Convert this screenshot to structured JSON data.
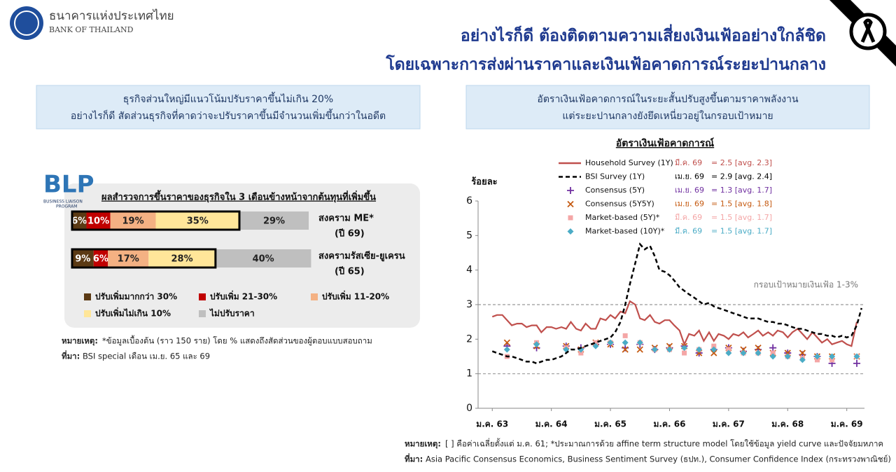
{
  "header": {
    "logo_th": "ธนาคารแห่งประเทศไทย",
    "logo_en": "BANK OF THAILAND",
    "title_lines": [
      "อย่างไรก็ดี ต้องติดตามความเสี่ยงเงินเฟ้ออย่างใกล้ชิด",
      "โดยเฉพาะการส่งผ่านราคาและเงินเฟ้อคาดการณ์ระยะปานกลาง"
    ]
  },
  "left_panel": {
    "heading_lines": [
      "ธุรกิจส่วนใหญ่มีแนวโน้มปรับราคาขึ้นไม่เกิน 20%",
      "อย่างไรก็ดี สัดส่วนธุรกิจที่คาดว่าจะปรับราคาขึ้นมีจำนวนเพิ่มขึ้นกว่าในอดีต"
    ],
    "logo": "BLP",
    "logo_sub": [
      "BUSINESS LIAISON",
      "PROGRAM"
    ],
    "note_label": "หมายเหตุ:",
    "note": "*ข้อมูลเบื้องต้น (ราว 150 ราย) โดย % แสดงถึงสัดส่วนของผู้ตอบแบบสอบถาม",
    "source_label": "ที่มา:",
    "source": "BSI special เดือน เม.ย. 65 และ 69"
  },
  "right_panel": {
    "heading_lines": [
      "อัตราเงินเฟ้อคาดการณ์ในระยะสั้นปรับสูงขึ้นตามราคาพลังงาน",
      "แต่ระยะปานกลางยังยึดเหนี่ยวอยู่ในกรอบเป้าหมาย"
    ],
    "note_label": "หมายเหตุ:",
    "note": "[ ] คือค่าเฉลี่ยตั้งแต่ ม.ค. 61; *ประมาณการด้วย affine term structure model โดยใช้ข้อมูล yield curve และปัจจัยมหภาค",
    "source_label": "ที่มา:",
    "source": "Asia Pacific Consensus Economics, Business Sentiment Survey (ธปท.), Consumer Confidence Index (กระทรวงพาณิชย์)"
  },
  "chart_data": [
    {
      "type": "bar",
      "orientation": "horizontal",
      "stacked": true,
      "title": "ผลสำรวจการขึ้นราคาของธุรกิจใน 3 เดือนข้างหน้าจากต้นทุนที่เพิ่มขึ้น",
      "categories": [
        "สงคราม ME*",
        "สงครามรัสเซีย-ยูเครน"
      ],
      "category_notes": [
        "(ปี 69)",
        "(ปี 65)"
      ],
      "series": [
        {
          "name": "ปรับเพิ่มมากกว่า 30%",
          "color": "#5b3a14",
          "values": [
            6,
            9
          ],
          "value_labels": [
            "6%",
            "9%"
          ],
          "framed": true
        },
        {
          "name": "ปรับเพิ่ม 21-30%",
          "color": "#c00000",
          "values": [
            10,
            6
          ],
          "value_labels": [
            "10%",
            "6%"
          ],
          "framed": true
        },
        {
          "name": "ปรับเพิ่ม 11-20%",
          "color": "#f4b183",
          "values": [
            19,
            17
          ],
          "value_labels": [
            "19%",
            "17%"
          ],
          "framed": true
        },
        {
          "name": "ปรับเพิ่มไม่เกิน 10%",
          "color": "#ffe699",
          "values": [
            35,
            28
          ],
          "value_labels": [
            "35%",
            "28%"
          ],
          "framed": true
        },
        {
          "name": "ไม่ปรับราคา",
          "color": "#bfbfbf",
          "values": [
            29,
            40
          ],
          "value_labels": [
            "29%",
            "40%"
          ],
          "framed": false
        }
      ]
    },
    {
      "type": "line",
      "title": "อัตราเงินเฟ้อคาดการณ์",
      "y_label": "ร้อยละ",
      "xlim": [
        62.76,
        69.3
      ],
      "xticks": [
        {
          "value": 63,
          "label": "ม.ค. 63"
        },
        {
          "value": 64,
          "label": "ม.ค. 64"
        },
        {
          "value": 65,
          "label": "ม.ค. 65"
        },
        {
          "value": 66,
          "label": "ม.ค. 66"
        },
        {
          "value": 67,
          "label": "ม.ค. 67"
        },
        {
          "value": 68,
          "label": "ม.ค. 68"
        },
        {
          "value": 69,
          "label": "ม.ค. 69"
        }
      ],
      "ylim": [
        0,
        6
      ],
      "yticks": [
        0,
        1,
        2,
        3,
        4,
        5,
        6
      ],
      "target_band": [
        1,
        3
      ],
      "target_label": "กรอบเป้าหมายเงินเฟ้อ 1-3%",
      "series": [
        {
          "name": "Household Survey (1Y)",
          "color": "#c0504d",
          "style": "solid",
          "latest_label": "มี.ค. 69",
          "legend_note": "= 2.5 [avg. 2.3]",
          "x": [
            63,
            63.08,
            63.17,
            63.25,
            63.33,
            63.42,
            63.5,
            63.58,
            63.67,
            63.75,
            63.83,
            63.92,
            64,
            64.08,
            64.17,
            64.25,
            64.33,
            64.42,
            64.5,
            64.58,
            64.67,
            64.75,
            64.83,
            64.92,
            65,
            65.08,
            65.17,
            65.25,
            65.33,
            65.42,
            65.5,
            65.58,
            65.67,
            65.75,
            65.83,
            65.92,
            66,
            66.08,
            66.17,
            66.25,
            66.33,
            66.42,
            66.5,
            66.58,
            66.67,
            66.75,
            66.83,
            66.92,
            67,
            67.08,
            67.17,
            67.25,
            67.33,
            67.42,
            67.5,
            67.58,
            67.67,
            67.75,
            67.83,
            67.92,
            68,
            68.08,
            68.17,
            68.25,
            68.33,
            68.42,
            68.5,
            68.58,
            68.67,
            68.75,
            68.83,
            68.92,
            69,
            69.08,
            69.17
          ],
          "values": [
            2.65,
            2.7,
            2.7,
            2.55,
            2.4,
            2.45,
            2.45,
            2.35,
            2.4,
            2.4,
            2.2,
            2.35,
            2.35,
            2.3,
            2.35,
            2.3,
            2.5,
            2.3,
            2.25,
            2.45,
            2.3,
            2.3,
            2.6,
            2.55,
            2.7,
            2.6,
            2.8,
            2.75,
            3.1,
            3.0,
            2.6,
            2.55,
            2.7,
            2.5,
            2.45,
            2.55,
            2.55,
            2.4,
            2.25,
            1.85,
            2.15,
            2.1,
            2.25,
            1.95,
            2.2,
            1.95,
            2.15,
            2.1,
            2.0,
            2.15,
            2.1,
            2.2,
            2.05,
            2.15,
            2.25,
            2.1,
            2.2,
            2.1,
            2.25,
            2.2,
            2.05,
            2.2,
            2.3,
            2.15,
            2.0,
            2.2,
            2.05,
            1.9,
            2.0,
            1.85,
            1.9,
            1.95,
            1.85,
            1.8,
            2.5
          ]
        },
        {
          "name": "BSI Survey (1Y)",
          "color": "#000000",
          "style": "dashed",
          "latest_label": "เม.ย. 69",
          "legend_note": "= 2.9 [avg. 2.4]",
          "x": [
            63,
            63.08,
            63.17,
            63.25,
            63.33,
            63.42,
            63.5,
            63.58,
            63.67,
            63.75,
            63.83,
            63.92,
            64,
            64.08,
            64.17,
            64.25,
            64.33,
            64.42,
            64.5,
            64.58,
            64.67,
            64.75,
            64.83,
            64.92,
            65,
            65.08,
            65.17,
            65.25,
            65.33,
            65.42,
            65.5,
            65.58,
            65.67,
            65.75,
            65.83,
            65.92,
            66,
            66.08,
            66.17,
            66.25,
            66.33,
            66.42,
            66.5,
            66.58,
            66.67,
            66.75,
            66.83,
            66.92,
            67,
            67.08,
            67.17,
            67.25,
            67.33,
            67.42,
            67.5,
            67.58,
            67.67,
            67.75,
            67.83,
            67.92,
            68,
            68.08,
            68.17,
            68.25,
            68.33,
            68.42,
            68.5,
            68.58,
            68.67,
            68.75,
            68.83,
            68.92,
            69,
            69.08,
            69.17,
            69.25
          ],
          "values": [
            1.65,
            1.6,
            1.55,
            1.5,
            1.5,
            1.45,
            1.4,
            1.35,
            1.35,
            1.3,
            1.35,
            1.4,
            1.4,
            1.45,
            1.5,
            1.6,
            1.7,
            1.7,
            1.75,
            1.8,
            1.85,
            1.9,
            1.95,
            2.0,
            2.05,
            2.2,
            2.5,
            3.0,
            3.6,
            4.2,
            4.75,
            4.6,
            4.7,
            4.4,
            4.0,
            3.95,
            3.85,
            3.7,
            3.5,
            3.4,
            3.3,
            3.2,
            3.1,
            3.0,
            3.05,
            2.95,
            2.9,
            2.85,
            2.8,
            2.75,
            2.7,
            2.65,
            2.6,
            2.6,
            2.6,
            2.55,
            2.5,
            2.5,
            2.45,
            2.45,
            2.4,
            2.35,
            2.3,
            2.3,
            2.25,
            2.2,
            2.15,
            2.15,
            2.1,
            2.1,
            2.05,
            2.1,
            2.05,
            2.1,
            2.4,
            2.9
          ]
        },
        {
          "name": "Consensus (5Y)",
          "color": "#7030a0",
          "style": "marker",
          "marker": "plus",
          "latest_label": "เม.ย. 69",
          "legend_note": "= 1.3 [avg. 1.7]",
          "x": [
            63.25,
            63.75,
            64.25,
            64.5,
            64.75,
            65,
            65.25,
            65.5,
            65.75,
            66,
            66.25,
            66.5,
            66.75,
            67,
            67.25,
            67.5,
            67.75,
            68,
            68.25,
            68.5,
            68.75,
            69.17
          ],
          "values": [
            1.8,
            1.75,
            1.8,
            1.75,
            1.85,
            1.85,
            1.75,
            1.85,
            1.7,
            1.75,
            1.8,
            1.6,
            1.7,
            1.75,
            1.65,
            1.7,
            1.75,
            1.6,
            1.55,
            1.5,
            1.3,
            1.3
          ]
        },
        {
          "name": "Consensus (5Y5Y)",
          "color": "#c55a11",
          "style": "marker",
          "marker": "cross",
          "latest_label": "เม.ย. 69",
          "legend_note": "= 1.5 [avg. 1.8]",
          "x": [
            63.25,
            63.75,
            64.25,
            64.5,
            64.75,
            65,
            65.25,
            65.5,
            65.75,
            66,
            66.25,
            66.5,
            66.75,
            67,
            67.25,
            67.5,
            67.75,
            68,
            68.25,
            68.5,
            68.75,
            69.17
          ],
          "values": [
            1.9,
            1.8,
            1.8,
            1.7,
            1.9,
            1.85,
            1.7,
            1.7,
            1.75,
            1.8,
            1.8,
            1.6,
            1.6,
            1.75,
            1.7,
            1.75,
            1.6,
            1.6,
            1.6,
            1.5,
            1.5,
            1.5
          ]
        },
        {
          "name": "Market-based (5Y)*",
          "color": "#f4a6a6",
          "style": "marker",
          "marker": "square",
          "latest_label": "มี.ค. 69",
          "legend_note": "= 1.5 [avg. 1.7]",
          "x": [
            63.25,
            63.75,
            64.25,
            64.5,
            64.75,
            65,
            65.25,
            65.5,
            65.75,
            66,
            66.25,
            66.5,
            66.75,
            67,
            67.25,
            67.5,
            67.75,
            68,
            68.25,
            68.5,
            68.75,
            69.17
          ],
          "values": [
            1.5,
            1.9,
            1.75,
            1.6,
            1.9,
            1.9,
            2.1,
            1.9,
            1.7,
            1.7,
            1.6,
            1.7,
            1.8,
            1.7,
            1.6,
            1.6,
            1.6,
            1.5,
            1.45,
            1.4,
            1.4,
            1.5
          ]
        },
        {
          "name": "Market-based (10Y)*",
          "color": "#4bacc6",
          "style": "marker",
          "marker": "diamond",
          "latest_label": "มี.ค. 69",
          "legend_note": "= 1.5 [avg. 1.7]",
          "x": [
            63.25,
            63.75,
            64.25,
            64.5,
            64.75,
            65,
            65.25,
            65.5,
            65.75,
            66,
            66.25,
            66.5,
            66.75,
            67,
            67.25,
            67.5,
            67.75,
            68,
            68.25,
            68.5,
            68.75,
            69.17
          ],
          "values": [
            1.7,
            1.85,
            1.7,
            1.7,
            1.8,
            1.9,
            1.9,
            1.9,
            1.7,
            1.7,
            1.75,
            1.7,
            1.7,
            1.6,
            1.6,
            1.6,
            1.5,
            1.5,
            1.4,
            1.5,
            1.5,
            1.5
          ]
        }
      ]
    }
  ]
}
